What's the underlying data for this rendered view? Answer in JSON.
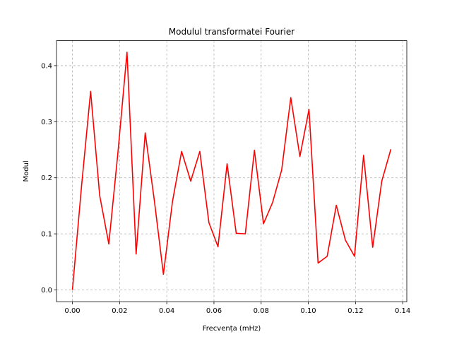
{
  "chart_data": {
    "type": "line",
    "title": "Modulul transformatei Fourier",
    "xlabel": "Frecvența (mHz)",
    "ylabel": "Modul",
    "xlim": [
      -0.00675,
      0.14175
    ],
    "ylim": [
      -0.021,
      0.4445
    ],
    "xticks": [
      0.0,
      0.02,
      0.04,
      0.06,
      0.08,
      0.1,
      0.12,
      0.14
    ],
    "xtick_labels": [
      "0.00",
      "0.02",
      "0.04",
      "0.06",
      "0.08",
      "0.10",
      "0.12",
      "0.14"
    ],
    "yticks": [
      0.0,
      0.1,
      0.2,
      0.3,
      0.4
    ],
    "ytick_labels": [
      "0.0",
      "0.1",
      "0.2",
      "0.3",
      "0.4"
    ],
    "grid": true,
    "grid_style": "dashed",
    "series": [
      {
        "color": "#ff0000",
        "x": [
          0.0,
          0.00386,
          0.00771,
          0.01157,
          0.01543,
          0.01929,
          0.02314,
          0.027,
          0.03086,
          0.03471,
          0.03857,
          0.04243,
          0.04629,
          0.05014,
          0.054,
          0.05786,
          0.06171,
          0.06557,
          0.06943,
          0.07329,
          0.07714,
          0.081,
          0.08486,
          0.08871,
          0.09257,
          0.09643,
          0.10029,
          0.10414,
          0.108,
          0.11186,
          0.11571,
          0.11957,
          0.12343,
          0.12729,
          0.13114,
          0.135
        ],
        "y": [
          0.0,
          0.185,
          0.354,
          0.168,
          0.082,
          0.245,
          0.424,
          0.064,
          0.28,
          0.16,
          0.028,
          0.158,
          0.247,
          0.194,
          0.247,
          0.12,
          0.077,
          0.225,
          0.101,
          0.1,
          0.249,
          0.118,
          0.156,
          0.214,
          0.343,
          0.238,
          0.322,
          0.048,
          0.06,
          0.151,
          0.089,
          0.06,
          0.24,
          0.076,
          0.194,
          0.251
        ]
      }
    ]
  }
}
